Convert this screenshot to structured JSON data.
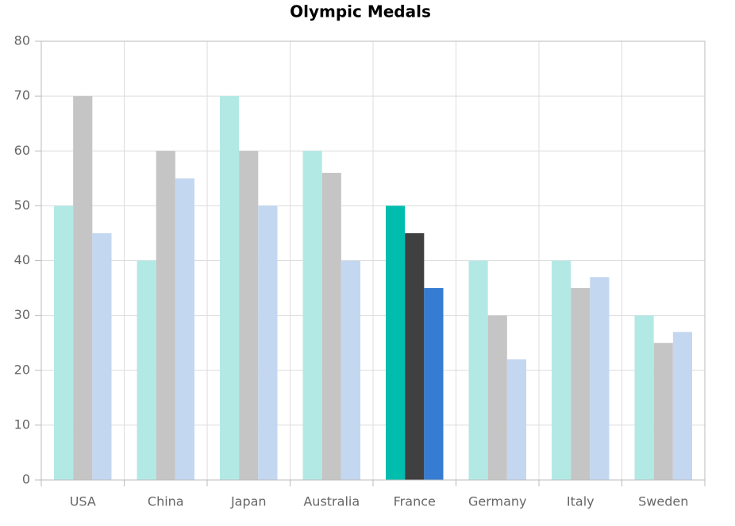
{
  "chart_data": {
    "type": "bar",
    "title": "Olympic Medals",
    "categories": [
      "USA",
      "China",
      "Japan",
      "Australia",
      "France",
      "Germany",
      "Italy",
      "Sweden"
    ],
    "series": [
      {
        "values": [
          50,
          40,
          70,
          60,
          50,
          40,
          40,
          30
        ],
        "colors": [
          "#b3e9e5",
          "#b3e9e5",
          "#b3e9e5",
          "#b3e9e5",
          "#00bdae",
          "#b3e9e5",
          "#b3e9e5",
          "#b3e9e5"
        ]
      },
      {
        "values": [
          70,
          60,
          60,
          56,
          45,
          30,
          35,
          25
        ],
        "colors": [
          "#c5c5c5",
          "#c5c5c5",
          "#c5c5c5",
          "#c5c5c5",
          "#404041",
          "#c5c5c5",
          "#c5c5c5",
          "#c5c5c5"
        ]
      },
      {
        "values": [
          45,
          55,
          50,
          40,
          35,
          22,
          37,
          27
        ],
        "colors": [
          "#c4d7f1",
          "#c4d7f1",
          "#c4d7f1",
          "#c4d7f1",
          "#357cd2",
          "#c4d7f1",
          "#c4d7f1",
          "#c4d7f1"
        ]
      }
    ],
    "ylim": [
      0,
      80
    ],
    "yticks": [
      0,
      10,
      20,
      30,
      40,
      50,
      60,
      70,
      80
    ],
    "grid": true
  }
}
